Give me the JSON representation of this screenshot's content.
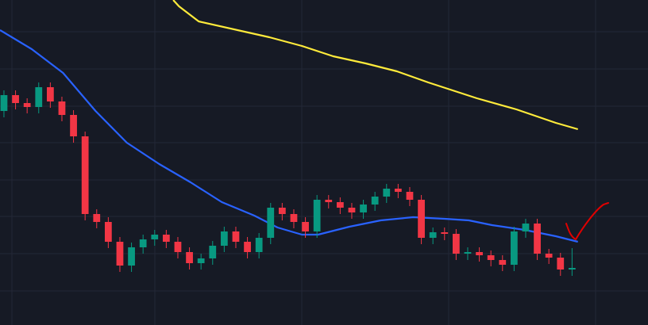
{
  "chart_data": {
    "type": "candlestick",
    "xlim": [
      -0.34,
      55.55
    ],
    "ylim": [
      0,
      410
    ],
    "up_color": "#089981",
    "down_color": "#f23645",
    "open": [
      270,
      290,
      280,
      275,
      300,
      282,
      265,
      238,
      140,
      130,
      105,
      75,
      98,
      108,
      114,
      105,
      92,
      78,
      84,
      100,
      118,
      105,
      92,
      110,
      148,
      140,
      130,
      118,
      158,
      155,
      148,
      142,
      152,
      162,
      172,
      168,
      158,
      110,
      117,
      115,
      90,
      92,
      88,
      82,
      76,
      118,
      128,
      90,
      85,
      70
    ],
    "high": [
      296,
      296,
      286,
      306,
      306,
      288,
      271,
      244,
      146,
      136,
      111,
      104,
      114,
      120,
      120,
      111,
      98,
      90,
      106,
      124,
      124,
      111,
      116,
      154,
      154,
      146,
      136,
      164,
      164,
      161,
      154,
      158,
      168,
      178,
      178,
      174,
      164,
      123,
      123,
      121,
      98,
      98,
      94,
      88,
      124,
      134,
      134,
      96,
      91,
      97
    ],
    "low": [
      262,
      272,
      267,
      267,
      274,
      257,
      230,
      132,
      122,
      97,
      67,
      67,
      90,
      100,
      97,
      84,
      70,
      70,
      76,
      92,
      97,
      84,
      84,
      102,
      132,
      122,
      110,
      110,
      147,
      140,
      134,
      134,
      144,
      154,
      160,
      150,
      102,
      102,
      107,
      82,
      82,
      80,
      74,
      68,
      68,
      110,
      82,
      77,
      62,
      62
    ],
    "close": [
      290,
      280,
      275,
      300,
      282,
      265,
      238,
      140,
      130,
      105,
      75,
      98,
      108,
      114,
      105,
      92,
      78,
      84,
      100,
      118,
      105,
      92,
      110,
      148,
      140,
      130,
      118,
      158,
      155,
      148,
      142,
      152,
      162,
      172,
      168,
      158,
      110,
      117,
      115,
      90,
      92,
      88,
      82,
      76,
      118,
      128,
      90,
      85,
      70,
      72
    ],
    "lines": [
      {
        "color": "#2962ff",
        "x": [
          -0.34,
          2.4,
          5.1,
          7.9,
          10.6,
          13.4,
          16.1,
          18.8,
          21.6,
          23.6,
          25.7,
          27.1,
          29.8,
          32.5,
          35.3,
          38.0,
          40.1,
          42.1,
          44.9,
          47.6,
          49.5
        ],
        "values": [
          372,
          348,
          318,
          270,
          230,
          203,
          180,
          155,
          138,
          123,
          114,
          114,
          124,
          132,
          136,
          134,
          132,
          126,
          120,
          112,
          105
        ]
      },
      {
        "color": "#ffeb3b",
        "x": [
          14.6,
          15.1,
          16.8,
          22.9,
          25.7,
          28.4,
          31.2,
          33.9,
          36.6,
          40.8,
          44.2,
          47.6,
          49.5
        ],
        "values": [
          410,
          402,
          383,
          363,
          352,
          339,
          330,
          320,
          306,
          286,
          272,
          255,
          247
        ]
      }
    ]
  }
}
